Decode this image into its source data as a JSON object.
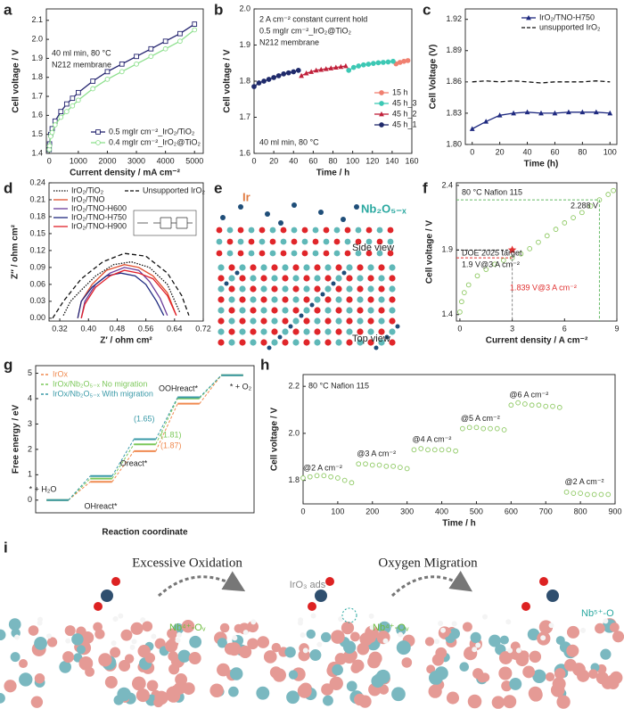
{
  "panel_labels": [
    "a",
    "b",
    "c",
    "d",
    "e",
    "f",
    "g",
    "h",
    "i"
  ],
  "figure_e": {
    "labels": [
      "Ir",
      "Nb₂O₅₋ₓ",
      "Side view",
      "Top view"
    ]
  },
  "figure_i": {
    "labels": [
      "Excessive Oxidation",
      "Oxygen Migration",
      "IrO₃ ads",
      "Nb⁴⁺-Oᵥ",
      "Nb⁴⁺-Oᵥ",
      "Nb⁵⁺-O"
    ]
  },
  "chart_data": [
    {
      "type": "line",
      "xlabel": "Current density / mA cm⁻²",
      "ylabel": "Cell voltage / V",
      "annotations": [
        "40 ml min, 80 °C",
        "N212 membrane"
      ],
      "x": [
        0,
        10,
        50,
        100,
        200,
        400,
        600,
        800,
        1000,
        1500,
        2000,
        2500,
        3000,
        3500,
        4000,
        4500,
        5000
      ],
      "series": [
        {
          "name": "0.5 mgIr cm⁻²_IrO₂/TiO₂",
          "color": "#23236e",
          "marker": "square-open",
          "values": [
            1.42,
            1.45,
            1.5,
            1.53,
            1.57,
            1.62,
            1.66,
            1.69,
            1.72,
            1.78,
            1.83,
            1.87,
            1.91,
            1.95,
            1.99,
            2.03,
            2.08
          ]
        },
        {
          "name": "0.4 mgIr cm⁻²_IrO₂@TiO₂",
          "color": "#8ee08e",
          "marker": "circle-open",
          "values": [
            1.42,
            1.44,
            1.49,
            1.51,
            1.55,
            1.59,
            1.62,
            1.65,
            1.68,
            1.74,
            1.79,
            1.83,
            1.87,
            1.91,
            1.95,
            1.99,
            2.05
          ]
        }
      ],
      "xlim": [
        -100,
        5300
      ],
      "xticks": [
        0,
        1000,
        2000,
        3000,
        4000,
        5000
      ],
      "ylim": [
        1.4,
        2.16
      ],
      "yticks": [
        1.4,
        1.5,
        1.6,
        1.7,
        1.8,
        1.9,
        {
          "value": 2,
          "label": "2.0"
        },
        2.1
      ]
    },
    {
      "type": "line",
      "xlabel": "Time / h",
      "ylabel": "Cell voltage / V",
      "annotations": [
        "2 A cm⁻² constant current hold",
        "0.5 mgIr cm⁻²_IrO₂@TiO₂",
        "N212 membrane",
        "40 ml min, 80 °C"
      ],
      "series": [
        {
          "name": "15 h",
          "color": "#f08070",
          "marker": "circle",
          "x": [
            144,
            148,
            152,
            156
          ],
          "values": [
            1.848,
            1.852,
            1.855,
            1.857
          ]
        },
        {
          "name": "45 h_3",
          "color": "#3cc8b4",
          "marker": "circle",
          "x": [
            96,
            101,
            106,
            111,
            116,
            121,
            126,
            131,
            136,
            141
          ],
          "values": [
            1.83,
            1.838,
            1.842,
            1.845,
            1.847,
            1.849,
            1.851,
            1.852,
            1.853,
            1.855
          ]
        },
        {
          "name": "45 h_2",
          "color": "#c0203a",
          "marker": "triangle",
          "x": [
            48,
            53,
            58,
            63,
            68,
            73,
            78,
            83,
            88,
            93
          ],
          "values": [
            1.815,
            1.822,
            1.826,
            1.83,
            1.832,
            1.834,
            1.836,
            1.838,
            1.84,
            1.842
          ]
        },
        {
          "name": "45 h_1",
          "color": "#1f2a6b",
          "marker": "circle",
          "x": [
            0,
            5,
            10,
            15,
            20,
            25,
            30,
            35,
            40,
            45
          ],
          "values": [
            1.785,
            1.795,
            1.8,
            1.805,
            1.81,
            1.815,
            1.82,
            1.823,
            1.826,
            1.83
          ]
        }
      ],
      "xlim": [
        0,
        160
      ],
      "xticks": [
        0,
        20,
        40,
        60,
        80,
        100,
        120,
        140,
        160
      ],
      "ylim": [
        1.6,
        2.0
      ],
      "yticks": [
        1.6,
        1.7,
        1.8,
        1.9,
        {
          "value": 2,
          "label": "2.0"
        }
      ]
    },
    {
      "type": "line",
      "xlabel": "Time (h)",
      "ylabel": "Cell Voltage (V)",
      "x": [
        0,
        10,
        20,
        30,
        40,
        50,
        60,
        70,
        80,
        90,
        100
      ],
      "series": [
        {
          "name": "IrO₂/TNO-H750",
          "color": "#1f2a80",
          "marker": "triangle",
          "values": [
            1.815,
            1.822,
            1.828,
            1.83,
            1.831,
            1.83,
            1.83,
            1.831,
            1.831,
            1.831,
            1.83
          ]
        },
        {
          "name": "unsupported IrO₂",
          "color": "#111111",
          "dashed": true,
          "values": [
            1.86,
            1.861,
            1.86,
            1.861,
            1.86,
            1.859,
            1.86,
            1.86,
            1.86,
            1.861,
            1.86
          ]
        }
      ],
      "xlim": [
        -5,
        105
      ],
      "xticks": [
        0,
        20,
        40,
        60,
        80,
        100
      ],
      "ylim": [
        1.8,
        1.93
      ],
      "yticks": [
        {
          "value": 1.8,
          "label": "1.80"
        },
        1.83,
        1.86,
        1.89,
        1.92
      ]
    },
    {
      "type": "line",
      "xlabel": "Z′ / ohm cm²",
      "ylabel": "Z″ / ohm cm²",
      "series": [
        {
          "name": "IrO₂/TiO₂",
          "color": "#111111",
          "dotted": true,
          "x": [
            0.33,
            0.35,
            0.38,
            0.42,
            0.47,
            0.52,
            0.57,
            0.62,
            0.655
          ],
          "values": [
            0.005,
            0.03,
            0.05,
            0.075,
            0.095,
            0.1,
            0.09,
            0.06,
            0.01
          ]
        },
        {
          "name": "IrO₂/TNO",
          "color": "#e05030",
          "x": [
            0.37,
            0.38,
            0.41,
            0.45,
            0.5,
            0.54,
            0.58,
            0.62,
            0.645
          ],
          "values": [
            0,
            0.03,
            0.06,
            0.085,
            0.095,
            0.09,
            0.075,
            0.045,
            0.005
          ]
        },
        {
          "name": "IrO₂/TNO-H600",
          "color": "#6a3d9a",
          "x": [
            0.38,
            0.39,
            0.42,
            0.46,
            0.5,
            0.54,
            0.57,
            0.6,
            0.62
          ],
          "values": [
            0,
            0.03,
            0.06,
            0.08,
            0.09,
            0.085,
            0.065,
            0.035,
            0.005
          ]
        },
        {
          "name": "IrO₂/TNO-H750",
          "color": "#1f2a80",
          "x": [
            0.37,
            0.38,
            0.41,
            0.45,
            0.49,
            0.53,
            0.56,
            0.59,
            0.61
          ],
          "values": [
            0,
            0.03,
            0.055,
            0.075,
            0.08,
            0.075,
            0.06,
            0.03,
            0.005
          ]
        },
        {
          "name": "IrO₂/TNO-H900",
          "color": "#e0202a",
          "x": [
            0.38,
            0.39,
            0.42,
            0.46,
            0.5,
            0.54,
            0.58,
            0.62,
            0.645
          ],
          "values": [
            0,
            0.025,
            0.055,
            0.075,
            0.085,
            0.08,
            0.07,
            0.04,
            0.005
          ]
        },
        {
          "name": "Unsupported IrO₂",
          "color": "#111111",
          "dashed": true,
          "x": [
            0.3,
            0.33,
            0.38,
            0.44,
            0.5,
            0.56,
            0.62,
            0.66,
            0.68
          ],
          "values": [
            0,
            0.03,
            0.07,
            0.1,
            0.115,
            0.11,
            0.08,
            0.04,
            0.005
          ]
        }
      ],
      "xlim": [
        0.29,
        0.72
      ],
      "xticks": [
        0.32,
        {
          "value": 0.4,
          "label": "0.40"
        },
        0.48,
        0.56,
        0.64,
        0.72
      ],
      "ylim": [
        -0.005,
        0.24
      ],
      "yticks": [
        {
          "value": 0,
          "label": "0.00"
        },
        0.03,
        0.06,
        0.09,
        0.12,
        0.15,
        0.18,
        0.21,
        0.24
      ]
    },
    {
      "type": "scatter",
      "xlabel": "Current density / A cm⁻²",
      "ylabel": "Cell voltage / V",
      "annotations": [
        "80 °C Nafion 115",
        "2.288 V",
        "DOE 2025 target",
        "1.9 V@3 A cm⁻²",
        "1.839 V@3 A cm⁻²"
      ],
      "x": [
        0,
        0.1,
        0.25,
        0.5,
        1,
        1.5,
        2,
        2.5,
        3,
        3.5,
        4,
        4.5,
        5,
        5.5,
        6,
        6.5,
        7,
        7.5,
        8,
        8.5,
        8.8
      ],
      "series": [
        {
          "color": "#8cc860",
          "marker": "circle-open",
          "values": [
            1.42,
            1.5,
            1.57,
            1.63,
            1.7,
            1.75,
            1.79,
            1.82,
            1.839,
            1.87,
            1.91,
            1.96,
            2.01,
            2.06,
            2.11,
            2.15,
            2.19,
            2.24,
            2.288,
            2.33,
            2.36
          ]
        }
      ],
      "target": {
        "x": 3,
        "value": 1.9,
        "color": "#e03030"
      },
      "xlim": [
        -0.2,
        9
      ],
      "xticks": [
        0,
        3,
        6,
        9
      ],
      "ylim": [
        1.35,
        2.42
      ],
      "yticks": [
        1.4,
        1.9,
        2.4
      ]
    },
    {
      "type": "energy",
      "xlabel": "Reaction coordinate",
      "ylabel": "Free energy / eV",
      "categories": [
        "* + H₂O",
        "OHreact*",
        "Oreact*",
        "OOHreact*",
        "* + O₂"
      ],
      "series": [
        {
          "name": "IrOx",
          "color": "#f08a50",
          "values": [
            0,
            0.72,
            1.93,
            3.8,
            4.92
          ]
        },
        {
          "name": "IrOx/Nb₂O₅₋ₓ No migration",
          "color": "#7cc85a",
          "values": [
            0,
            0.85,
            2.2,
            4.01,
            4.92
          ]
        },
        {
          "name": "IrOx/Nb₂O₅₋ₓ With migration",
          "color": "#3a9aa8",
          "values": [
            0,
            0.95,
            2.4,
            4.05,
            4.92
          ]
        }
      ],
      "step_labels": [
        {
          "text": "(1.65)",
          "color": "#3a9aa8"
        },
        {
          "text": "(1.81)",
          "color": "#7cc85a"
        },
        {
          "text": "(1.87)",
          "color": "#f08a50"
        }
      ],
      "ylim": [
        -0.5,
        5.3
      ],
      "yticks": [
        0,
        1,
        2,
        3,
        4,
        5
      ]
    },
    {
      "type": "scatter",
      "xlabel": "Time / h",
      "ylabel": "Cell voltage / V",
      "annotations": [
        "80 °C Nafion 115"
      ],
      "segment_labels": [
        "@2 A cm⁻²",
        "@3 A cm⁻²",
        "@4 A cm⁻²",
        "@5 A cm⁻²",
        "@6 A cm⁻²",
        "@2 A cm⁻²"
      ],
      "x": [
        0,
        20,
        40,
        60,
        80,
        100,
        120,
        140,
        160,
        180,
        200,
        220,
        240,
        260,
        280,
        300,
        320,
        340,
        360,
        380,
        400,
        420,
        440,
        460,
        480,
        500,
        520,
        540,
        560,
        580,
        600,
        620,
        640,
        660,
        680,
        700,
        720,
        740,
        760,
        780,
        800,
        820,
        840,
        860,
        880
      ],
      "series": [
        {
          "color": "#8cc860",
          "marker": "circle-open",
          "values": [
            1.81,
            1.815,
            1.82,
            1.82,
            1.815,
            1.81,
            1.8,
            1.79,
            1.87,
            1.87,
            1.865,
            1.865,
            1.86,
            1.86,
            1.855,
            1.85,
            1.93,
            1.935,
            1.93,
            1.93,
            1.93,
            1.93,
            1.925,
            2.02,
            2.025,
            2.025,
            2.02,
            2.02,
            2.02,
            2.015,
            2.12,
            2.13,
            2.125,
            2.12,
            2.12,
            2.115,
            2.115,
            2.11,
            1.75,
            1.745,
            1.745,
            1.74,
            1.74,
            1.74,
            1.74
          ]
        }
      ],
      "xlim": [
        0,
        900
      ],
      "xticks": [
        0,
        100,
        200,
        300,
        400,
        500,
        600,
        700,
        800,
        900
      ],
      "ylim": [
        1.7,
        2.25
      ],
      "yticks": [
        1.8,
        {
          "value": 2,
          "label": "2.0"
        },
        2.2
      ]
    }
  ]
}
